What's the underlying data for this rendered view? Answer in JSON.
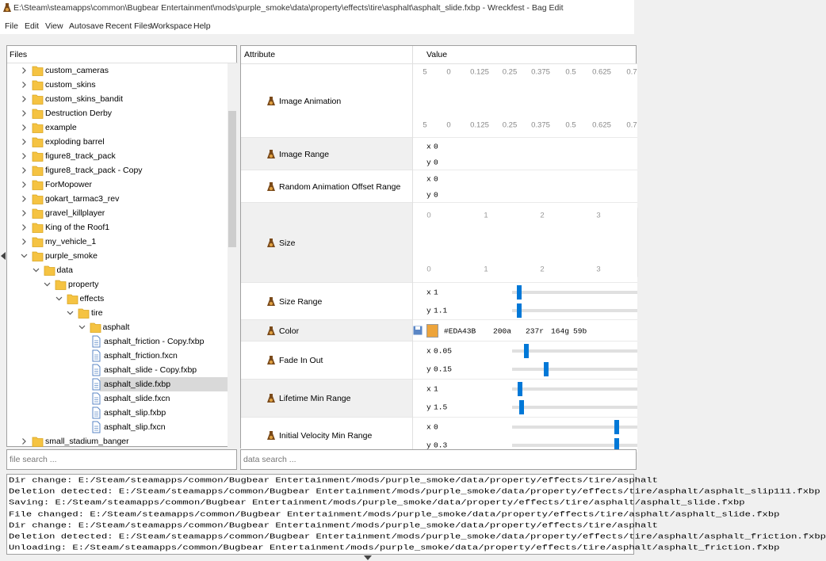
{
  "window": {
    "title": "E:\\Steam\\steamapps\\common\\Bugbear Entertainment\\mods\\purple_smoke\\data\\property\\effects\\tire\\asphalt\\asphalt_slide.fxbp - Wreckfest - Bag Edit"
  },
  "menu": [
    "File",
    "Edit",
    "View",
    "Autosave",
    "Recent Files",
    "Workspace",
    "Help"
  ],
  "files": {
    "header": "Files",
    "search": "file search ...",
    "tree": [
      {
        "label": "custom_cameras",
        "depth": 0,
        "kind": "folder"
      },
      {
        "label": "custom_skins",
        "depth": 0,
        "kind": "folder"
      },
      {
        "label": "custom_skins_bandit",
        "depth": 0,
        "kind": "folder"
      },
      {
        "label": "Destruction Derby",
        "depth": 0,
        "kind": "folder"
      },
      {
        "label": "example",
        "depth": 0,
        "kind": "folder"
      },
      {
        "label": "exploding barrel",
        "depth": 0,
        "kind": "folder"
      },
      {
        "label": "figure8_track_pack",
        "depth": 0,
        "kind": "folder"
      },
      {
        "label": "figure8_track_pack - Copy",
        "depth": 0,
        "kind": "folder"
      },
      {
        "label": "ForMopower",
        "depth": 0,
        "kind": "folder"
      },
      {
        "label": "gokart_tarmac3_rev",
        "depth": 0,
        "kind": "folder"
      },
      {
        "label": "gravel_killplayer",
        "depth": 0,
        "kind": "folder"
      },
      {
        "label": "King of the Roof1",
        "depth": 0,
        "kind": "folder"
      },
      {
        "label": "my_vehicle_1",
        "depth": 0,
        "kind": "folder"
      },
      {
        "label": "purple_smoke",
        "depth": 0,
        "kind": "folder",
        "expanded": true
      },
      {
        "label": "data",
        "depth": 1,
        "kind": "folder",
        "expanded": true
      },
      {
        "label": "property",
        "depth": 2,
        "kind": "folder",
        "expanded": true
      },
      {
        "label": "effects",
        "depth": 3,
        "kind": "folder",
        "expanded": true
      },
      {
        "label": "tire",
        "depth": 4,
        "kind": "folder",
        "expanded": true
      },
      {
        "label": "asphalt",
        "depth": 5,
        "kind": "folder",
        "expanded": true
      },
      {
        "label": "asphalt_friction - Copy.fxbp",
        "depth": 6,
        "kind": "file"
      },
      {
        "label": "asphalt_friction.fxcn",
        "depth": 6,
        "kind": "file"
      },
      {
        "label": "asphalt_slide - Copy.fxbp",
        "depth": 6,
        "kind": "file"
      },
      {
        "label": "asphalt_slide.fxbp",
        "depth": 6,
        "kind": "file",
        "selected": true
      },
      {
        "label": "asphalt_slide.fxcn",
        "depth": 6,
        "kind": "file"
      },
      {
        "label": "asphalt_slip.fxbp",
        "depth": 6,
        "kind": "file"
      },
      {
        "label": "asphalt_slip.fxcn",
        "depth": 6,
        "kind": "file"
      },
      {
        "label": "small_stadium_banger",
        "depth": 0,
        "kind": "folder"
      }
    ]
  },
  "attributes": {
    "headers": [
      "Attribute",
      "Value"
    ],
    "search": "data search ...",
    "rows": [
      {
        "name": "Image Animation",
        "curve_ticks": [
          "5",
          "0",
          "0.125",
          "0.25",
          "0.375",
          "0.5",
          "0.625",
          "0.7"
        ]
      },
      {
        "name": "Image Range",
        "values": [
          {
            "axis": "x",
            "value": 0
          },
          {
            "axis": "y",
            "value": 0
          }
        ]
      },
      {
        "name": "Random Animation Offset Range",
        "values": [
          {
            "axis": "x",
            "value": 0
          },
          {
            "axis": "y",
            "value": 0
          }
        ]
      },
      {
        "name": "Size",
        "curve_ticks": [
          "0",
          "1",
          "2",
          "3"
        ]
      },
      {
        "name": "Size Range",
        "values": [
          {
            "axis": "x",
            "value": 1
          },
          {
            "axis": "y",
            "value": 1.1
          }
        ]
      },
      {
        "name": "Color",
        "hex": "#EDA43B",
        "channels": [
          "200a",
          "237r",
          "164g",
          "59b"
        ]
      },
      {
        "name": "Fade In Out",
        "values": [
          {
            "axis": "x",
            "value": 0.05
          },
          {
            "axis": "y",
            "value": 0.15
          }
        ]
      },
      {
        "name": "Lifetime Min Range",
        "values": [
          {
            "axis": "x",
            "value": 1
          },
          {
            "axis": "y",
            "value": 1.5
          }
        ]
      },
      {
        "name": "Initial Velocity Min Range",
        "values": [
          {
            "axis": "x",
            "value": 0
          },
          {
            "axis": "y",
            "value": 0.3
          }
        ]
      }
    ]
  },
  "log": [
    "Dir change: E:/Steam/steamapps/common/Bugbear Entertainment/mods/purple_smoke/data/property/effects/tire/asphalt",
    "Deletion detected: E:/Steam/steamapps/common/Bugbear Entertainment/mods/purple_smoke/data/property/effects/tire/asphalt/asphalt_slip111.fxbp",
    "Saving: E:/Steam/steamapps/common/Bugbear Entertainment/mods/purple_smoke/data/property/effects/tire/asphalt/asphalt_slide.fxbp",
    "File changed: E:/Steam/steamapps/common/Bugbear Entertainment/mods/purple_smoke/data/property/effects/tire/asphalt/asphalt_slide.fxbp",
    "Dir change: E:/Steam/steamapps/common/Bugbear Entertainment/mods/purple_smoke/data/property/effects/tire/asphalt",
    "Deletion detected: E:/Steam/steamapps/common/Bugbear Entertainment/mods/purple_smoke/data/property/effects/tire/asphalt/asphalt_friction.fxbp",
    "Unloading: E:/Steam/steamapps/common/Bugbear Entertainment/mods/purple_smoke/data/property/effects/tire/asphalt/asphalt_friction.fxbp"
  ]
}
